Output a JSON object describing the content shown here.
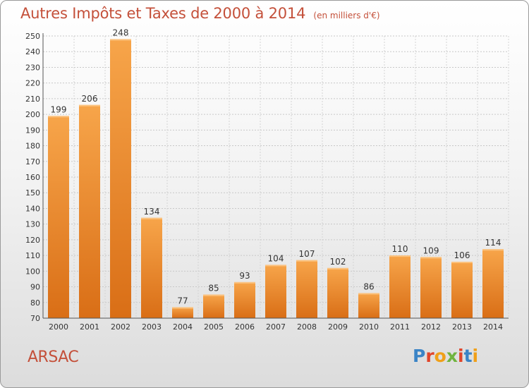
{
  "chart_data": {
    "type": "bar",
    "title": "Autres Impôts et Taxes de 2000 à 2014",
    "subtitle": "(en milliers d'€)",
    "categories": [
      "2000",
      "2001",
      "2002",
      "2003",
      "2004",
      "2005",
      "2006",
      "2007",
      "2008",
      "2009",
      "2010",
      "2011",
      "2012",
      "2013",
      "2014"
    ],
    "values": [
      199,
      206,
      248,
      134,
      77,
      85,
      93,
      104,
      107,
      102,
      86,
      110,
      109,
      106,
      114
    ],
    "ylim": [
      70,
      250
    ],
    "yticks": [
      70,
      80,
      90,
      100,
      110,
      120,
      130,
      140,
      150,
      160,
      170,
      180,
      190,
      200,
      210,
      220,
      230,
      240,
      250
    ],
    "grid": true,
    "bar_color": "#f39a3e"
  },
  "footer": {
    "commune": "ARSAC",
    "logo_letters": [
      "P",
      "r",
      "o",
      "x",
      "i",
      "t",
      "i"
    ],
    "logo_colors": [
      "#3b84c6",
      "#e1452a",
      "#f0a019",
      "#6fb43f",
      "#e1452a",
      "#3b84c6",
      "#f0a019"
    ]
  }
}
